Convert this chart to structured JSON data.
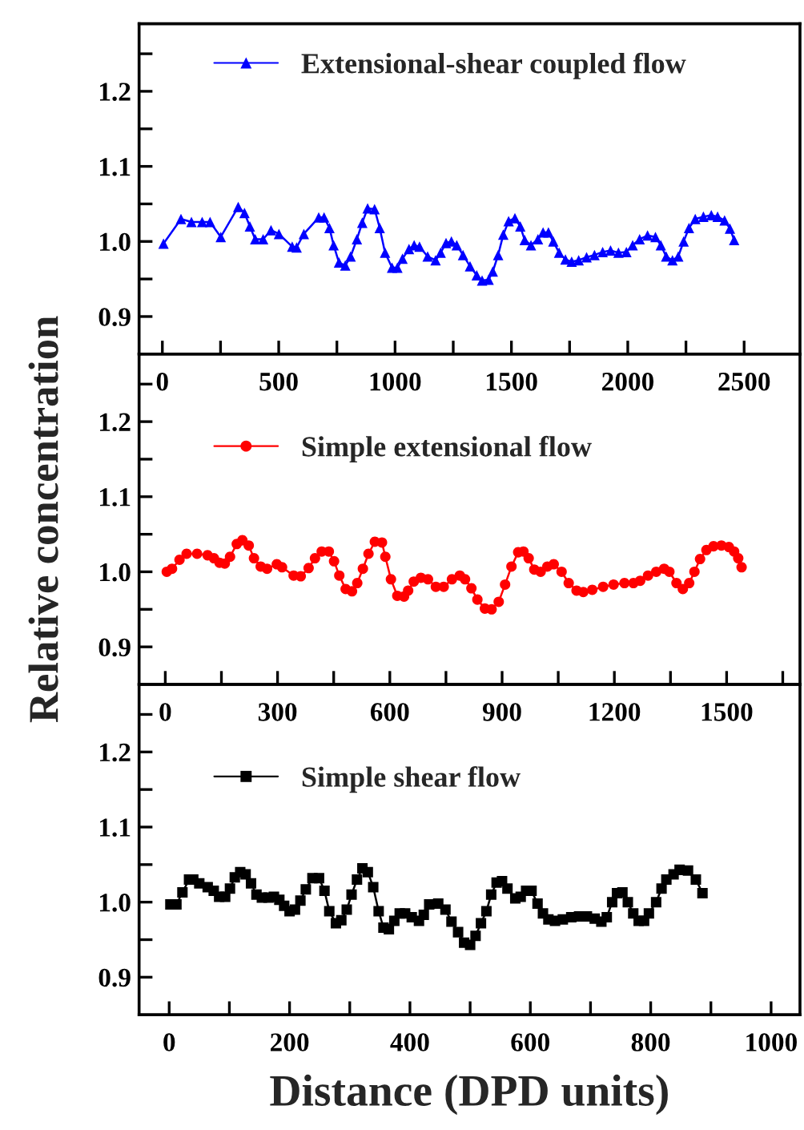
{
  "chart_data": [
    {
      "type": "line",
      "legend": "top left",
      "marker": "triangle",
      "line_style": "solid",
      "xlim": [
        -100,
        2740
      ],
      "ylim": [
        0.85,
        1.29
      ],
      "xticks": [
        0,
        {
          "value": 250,
          "label": null
        },
        500,
        {
          "value": 750,
          "label": null
        },
        1000,
        {
          "value": 1250,
          "label": null
        },
        1500,
        {
          "value": 1750,
          "label": null
        },
        2000,
        {
          "value": 2250,
          "label": null
        },
        2500
      ],
      "yticks": [
        {
          "value": 0.9,
          "label": "0.9"
        },
        {
          "value": 0.95,
          "label": null
        },
        {
          "value": 1.0,
          "label": "1.0"
        },
        {
          "value": 1.05,
          "label": null
        },
        {
          "value": 1.1,
          "label": "1.1"
        },
        {
          "value": 1.15,
          "label": null
        },
        {
          "value": 1.2,
          "label": "1.2"
        },
        {
          "value": 1.25,
          "label": null
        }
      ],
      "series": [
        {
          "name": "Extensional-shear coupled flow",
          "color": "#0000ff",
          "x": [
            5,
            80,
            125,
            171,
            205,
            251,
            326,
            353,
            376,
            399,
            433,
            467,
            501,
            558,
            577,
            608,
            672,
            695,
            718,
            736,
            759,
            786,
            809,
            836,
            859,
            882,
            912,
            934,
            957,
            987,
            1010,
            1032,
            1060,
            1082,
            1105,
            1140,
            1174,
            1196,
            1219,
            1242,
            1265,
            1292,
            1322,
            1351,
            1374,
            1402,
            1420,
            1443,
            1465,
            1488,
            1515,
            1538,
            1557,
            1584,
            1614,
            1636,
            1659,
            1680,
            1705,
            1732,
            1759,
            1789,
            1823,
            1857,
            1892,
            1926,
            1960,
            1994,
            2021,
            2051,
            2085,
            2119,
            2142,
            2165,
            2192,
            2217,
            2240,
            2263,
            2290,
            2325,
            2359,
            2386,
            2416,
            2439,
            2457
          ],
          "values": [
            0.997,
            1.03,
            1.026,
            1.026,
            1.026,
            1.006,
            1.046,
            1.038,
            1.02,
            1.003,
            1.003,
            1.015,
            1.01,
            0.993,
            0.992,
            1.01,
            1.032,
            1.032,
            1.018,
            0.995,
            0.972,
            0.968,
            0.98,
            1.003,
            1.025,
            1.044,
            1.043,
            1.018,
            0.985,
            0.965,
            0.965,
            0.977,
            0.99,
            0.995,
            0.993,
            0.98,
            0.975,
            0.985,
            0.998,
            1.0,
            0.995,
            0.982,
            0.967,
            0.955,
            0.948,
            0.949,
            0.96,
            0.982,
            1.009,
            1.027,
            1.031,
            1.02,
            1.002,
            0.995,
            1.003,
            1.012,
            1.012,
            1.0,
            0.985,
            0.976,
            0.973,
            0.975,
            0.979,
            0.982,
            0.986,
            0.988,
            0.985,
            0.986,
            0.995,
            1.003,
            1.008,
            1.006,
            0.995,
            0.98,
            0.975,
            0.98,
            1.0,
            1.018,
            1.03,
            1.033,
            1.035,
            1.033,
            1.028,
            1.017,
            1.002
          ]
        }
      ]
    },
    {
      "type": "line",
      "legend": "top left",
      "marker": "circle",
      "line_style": "solid",
      "ylabel": "Relative concentration",
      "xlim": [
        -70,
        1696
      ],
      "ylim": [
        0.85,
        1.29
      ],
      "xticks": [
        0,
        {
          "value": 150,
          "label": null
        },
        300,
        {
          "value": 450,
          "label": null
        },
        600,
        {
          "value": 750,
          "label": null
        },
        900,
        {
          "value": 1050,
          "label": null
        },
        1200,
        {
          "value": 1350,
          "label": null
        },
        1500,
        {
          "value": 1650,
          "label": null
        }
      ],
      "yticks": [
        {
          "value": 0.9,
          "label": "0.9"
        },
        {
          "value": 0.95,
          "label": null
        },
        {
          "value": 1.0,
          "label": "1.0"
        },
        {
          "value": 1.05,
          "label": null
        },
        {
          "value": 1.1,
          "label": "1.1"
        },
        {
          "value": 1.15,
          "label": null
        },
        {
          "value": 1.2,
          "label": "1.2"
        },
        {
          "value": 1.25,
          "label": null
        }
      ],
      "series": [
        {
          "name": "Simple extensional flow",
          "color": "#ff0000",
          "x": [
            4,
            18,
            38,
            57,
            85,
            113,
            130,
            145,
            159,
            173,
            191,
            206,
            223,
            237,
            255,
            272,
            298,
            312,
            343,
            362,
            383,
            400,
            418,
            437,
            451,
            465,
            482,
            499,
            513,
            528,
            543,
            560,
            579,
            588,
            603,
            620,
            638,
            649,
            664,
            683,
            702,
            723,
            744,
            766,
            787,
            801,
            818,
            834,
            854,
            872,
            891,
            908,
            925,
            943,
            957,
            971,
            986,
            1003,
            1021,
            1038,
            1059,
            1078,
            1099,
            1117,
            1141,
            1170,
            1198,
            1227,
            1251,
            1269,
            1290,
            1312,
            1333,
            1347,
            1366,
            1383,
            1400,
            1414,
            1429,
            1446,
            1465,
            1486,
            1506,
            1520,
            1531,
            1540
          ],
          "values": [
            1.0,
            1.004,
            1.016,
            1.024,
            1.024,
            1.022,
            1.018,
            1.012,
            1.011,
            1.02,
            1.037,
            1.042,
            1.035,
            1.018,
            1.007,
            1.004,
            1.01,
            1.006,
            0.995,
            0.994,
            1.005,
            1.018,
            1.027,
            1.027,
            1.014,
            0.995,
            0.977,
            0.974,
            0.985,
            1.004,
            1.024,
            1.04,
            1.039,
            1.02,
            0.99,
            0.968,
            0.967,
            0.975,
            0.987,
            0.992,
            0.99,
            0.98,
            0.98,
            0.99,
            0.995,
            0.99,
            0.978,
            0.963,
            0.951,
            0.95,
            0.96,
            0.983,
            1.007,
            1.026,
            1.027,
            1.018,
            1.003,
            1.0,
            1.007,
            1.01,
            1.0,
            0.985,
            0.975,
            0.973,
            0.976,
            0.98,
            0.983,
            0.985,
            0.985,
            0.988,
            0.995,
            1.0,
            1.004,
            1.0,
            0.985,
            0.977,
            0.985,
            1.0,
            1.017,
            1.029,
            1.034,
            1.035,
            1.033,
            1.027,
            1.018,
            1.006
          ]
        }
      ]
    },
    {
      "type": "line",
      "legend": "top left",
      "marker": "square",
      "line_style": "solid",
      "xlabel": "Distance (DPD units)",
      "xlim": [
        -50,
        1048
      ],
      "ylim": [
        0.85,
        1.29
      ],
      "xticks": [
        0,
        {
          "value": 100,
          "label": null
        },
        200,
        {
          "value": 300,
          "label": null
        },
        400,
        {
          "value": 500,
          "label": null
        },
        600,
        {
          "value": 700,
          "label": null
        },
        800,
        {
          "value": 900,
          "label": null
        },
        1000
      ],
      "yticks": [
        {
          "value": 0.9,
          "label": "0.9"
        },
        {
          "value": 0.95,
          "label": null
        },
        {
          "value": 1.0,
          "label": "1.0"
        },
        {
          "value": 1.05,
          "label": null
        },
        {
          "value": 1.1,
          "label": "1.1"
        },
        {
          "value": 1.15,
          "label": null
        },
        {
          "value": 1.2,
          "label": "1.2"
        },
        {
          "value": 1.25,
          "label": null
        }
      ],
      "series": [
        {
          "name": "Simple shear flow",
          "color": "#000000",
          "x": [
            2,
            12,
            22,
            33,
            40,
            50,
            64,
            74,
            83,
            93,
            101,
            109,
            118,
            127,
            136,
            145,
            154,
            165,
            174,
            183,
            191,
            200,
            209,
            218,
            227,
            238,
            249,
            258,
            266,
            277,
            286,
            295,
            303,
            312,
            321,
            330,
            339,
            348,
            356,
            365,
            374,
            383,
            392,
            403,
            415,
            423,
            432,
            447,
            459,
            469,
            480,
            490,
            500,
            509,
            518,
            527,
            535,
            544,
            553,
            562,
            575,
            584,
            593,
            602,
            612,
            621,
            630,
            641,
            654,
            668,
            681,
            694,
            707,
            718,
            727,
            736,
            744,
            753,
            762,
            771,
            780,
            789,
            797,
            809,
            818,
            826,
            838,
            848,
            862,
            875,
            886
          ],
          "values": [
            0.997,
            0.997,
            1.013,
            1.03,
            1.03,
            1.025,
            1.02,
            1.015,
            1.007,
            1.007,
            1.018,
            1.033,
            1.04,
            1.037,
            1.025,
            1.01,
            1.006,
            1.006,
            1.007,
            1.003,
            0.995,
            0.988,
            0.99,
            1.002,
            1.017,
            1.032,
            1.032,
            1.015,
            0.988,
            0.972,
            0.976,
            0.99,
            1.01,
            1.03,
            1.045,
            1.04,
            1.02,
            0.988,
            0.966,
            0.964,
            0.975,
            0.985,
            0.985,
            0.98,
            0.975,
            0.983,
            0.997,
            0.998,
            0.99,
            0.974,
            0.96,
            0.946,
            0.943,
            0.955,
            0.972,
            0.988,
            1.01,
            1.026,
            1.028,
            1.018,
            1.005,
            1.007,
            1.015,
            1.015,
            0.998,
            0.985,
            0.977,
            0.975,
            0.977,
            0.98,
            0.981,
            0.981,
            0.978,
            0.974,
            0.98,
            1.0,
            1.012,
            1.013,
            1.0,
            0.985,
            0.975,
            0.975,
            0.985,
            1.0,
            1.018,
            1.03,
            1.037,
            1.043,
            1.042,
            1.03,
            1.012
          ]
        }
      ]
    }
  ]
}
